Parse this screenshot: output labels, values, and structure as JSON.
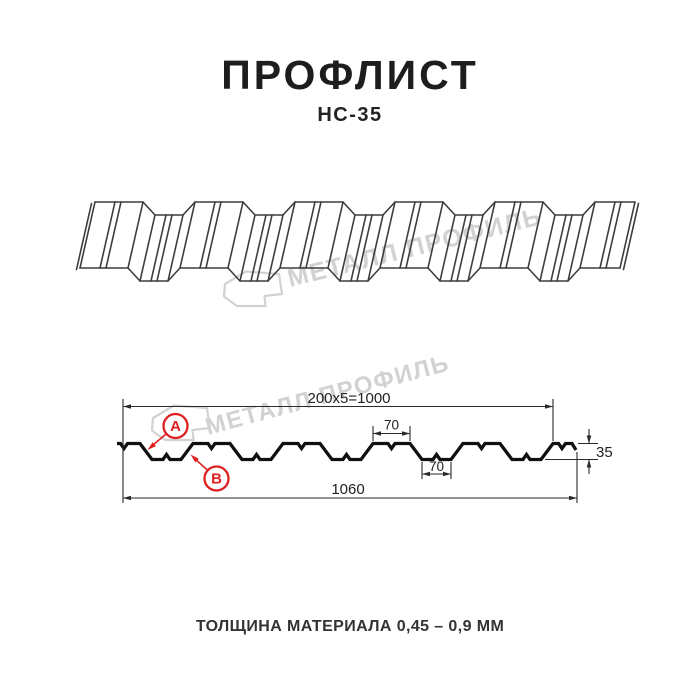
{
  "header": {
    "title": "ПРОФЛИСТ",
    "subtitle": "НС-35"
  },
  "watermark": {
    "text": "МЕТАЛЛ ПРОФИЛЬ"
  },
  "cross_section": {
    "dim_top_total": "200x5=1000",
    "dim_rib_top": "70",
    "dim_rib_bottom": "70",
    "dim_height": "35",
    "dim_overall_width": "1060",
    "callout_a": "A",
    "callout_b": "B"
  },
  "footer": {
    "caption": "ТОЛЩИНА МАТЕРИАЛА 0,45 – 0,9 ММ"
  },
  "colors": {
    "title": "#1d1d1d",
    "drawing_line": "#3d3d3d",
    "profile_line": "#101010",
    "dimension_line": "#2a2a2a",
    "annotation_red": "#e02020",
    "watermark_gray": "#d2d2d2"
  }
}
